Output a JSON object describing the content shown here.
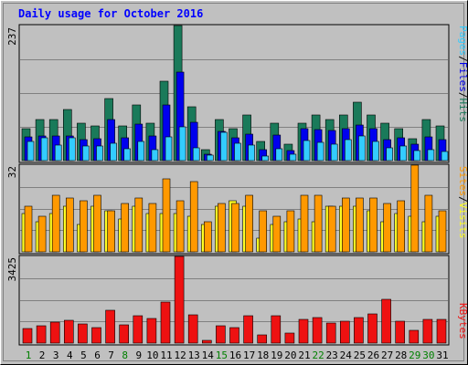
{
  "chart_data": {
    "type": "bar",
    "title": "Daily usage for October 2016",
    "categories": [
      "1",
      "2",
      "3",
      "4",
      "5",
      "6",
      "7",
      "8",
      "9",
      "10",
      "11",
      "12",
      "13",
      "14",
      "15",
      "16",
      "17",
      "18",
      "19",
      "20",
      "21",
      "22",
      "23",
      "24",
      "25",
      "26",
      "27",
      "28",
      "29",
      "30",
      "31"
    ],
    "weekend_days": [
      "1",
      "8",
      "15",
      "22",
      "29",
      "30"
    ],
    "colors": {
      "hits": "#1a7a5a",
      "files": "#0000ee",
      "pages": "#33ccff",
      "visits": "#ffff22",
      "sites": "#ff9900",
      "kbytes": "#ee1111",
      "weekday_label": "#000000",
      "weekend_label": "#008000",
      "title": "#0000ff",
      "panel_bg": "#c0c0c0"
    },
    "panels": [
      {
        "id": "hits",
        "max_label": "237",
        "ylim": [
          0,
          237
        ],
        "legend": [
          {
            "text": "Pages",
            "color": "#33ccff"
          },
          {
            "text": "/",
            "color": "#000000"
          },
          {
            "text": "Files",
            "color": "#0000ee"
          },
          {
            "text": "/",
            "color": "#000000"
          },
          {
            "text": "Hits",
            "color": "#1a7a5a"
          }
        ],
        "series": [
          {
            "name": "Hits",
            "values": [
              56,
              72,
              72,
              89,
              66,
              61,
              109,
              61,
              98,
              66,
              140,
              237,
              94,
              19,
              72,
              56,
              80,
              34,
              66,
              29,
              66,
              80,
              72,
              80,
              103,
              80,
              66,
              56,
              38,
              72,
              61
            ]
          },
          {
            "name": "Files",
            "values": [
              42,
              43,
              44,
              43,
              37,
              38,
              72,
              40,
              64,
              43,
              97,
              156,
              68,
              11,
              52,
              40,
              47,
              19,
              45,
              18,
              56,
              54,
              53,
              56,
              62,
              56,
              37,
              40,
              29,
              42,
              37
            ]
          },
          {
            "name": "Pages",
            "values": [
              33,
              40,
              28,
              40,
              25,
              26,
              31,
              21,
              34,
              19,
              42,
              60,
              22,
              10,
              49,
              31,
              27,
              8,
              21,
              12,
              36,
              32,
              29,
              37,
              43,
              34,
              23,
              26,
              17,
              20,
              16
            ]
          }
        ]
      },
      {
        "id": "sites",
        "max_label": "32",
        "ylim": [
          0,
          32
        ],
        "legend": [
          {
            "text": "Sites",
            "color": "#ff9900"
          },
          {
            "text": "/",
            "color": "#000000"
          },
          {
            "text": "Visits",
            "color": "#ffff22"
          }
        ],
        "series": [
          {
            "name": "Visits",
            "values": [
              14,
              11,
              14,
              17,
              10,
              17,
              15,
              12,
              17,
              14,
              14,
              14,
              13,
              10,
              17,
              19,
              17,
              5,
              10,
              11,
              12,
              11,
              17,
              17,
              17,
              15,
              11,
              14,
              13,
              11,
              13
            ]
          },
          {
            "name": "Sites",
            "values": [
              17,
              13,
              21,
              20,
              19,
              21,
              15,
              18,
              20,
              18,
              27,
              19,
              26,
              11,
              18,
              18,
              21,
              15,
              13,
              15,
              21,
              21,
              17,
              20,
              20,
              20,
              18,
              19,
              32,
              21,
              15
            ]
          }
        ]
      },
      {
        "id": "kbytes",
        "max_label": "3425",
        "ylim": [
          0,
          3425
        ],
        "legend": [
          {
            "text": "KBytes",
            "color": "#ee1111"
          }
        ],
        "series": [
          {
            "name": "KBytes",
            "values": [
              590,
              690,
              830,
              900,
              750,
              620,
              1310,
              720,
              1080,
              990,
              1620,
              3425,
              1120,
              110,
              690,
              620,
              1080,
              320,
              1080,
              410,
              950,
              1000,
              800,
              870,
              1000,
              1150,
              1740,
              880,
              510,
              950,
              920
            ]
          }
        ]
      }
    ]
  }
}
